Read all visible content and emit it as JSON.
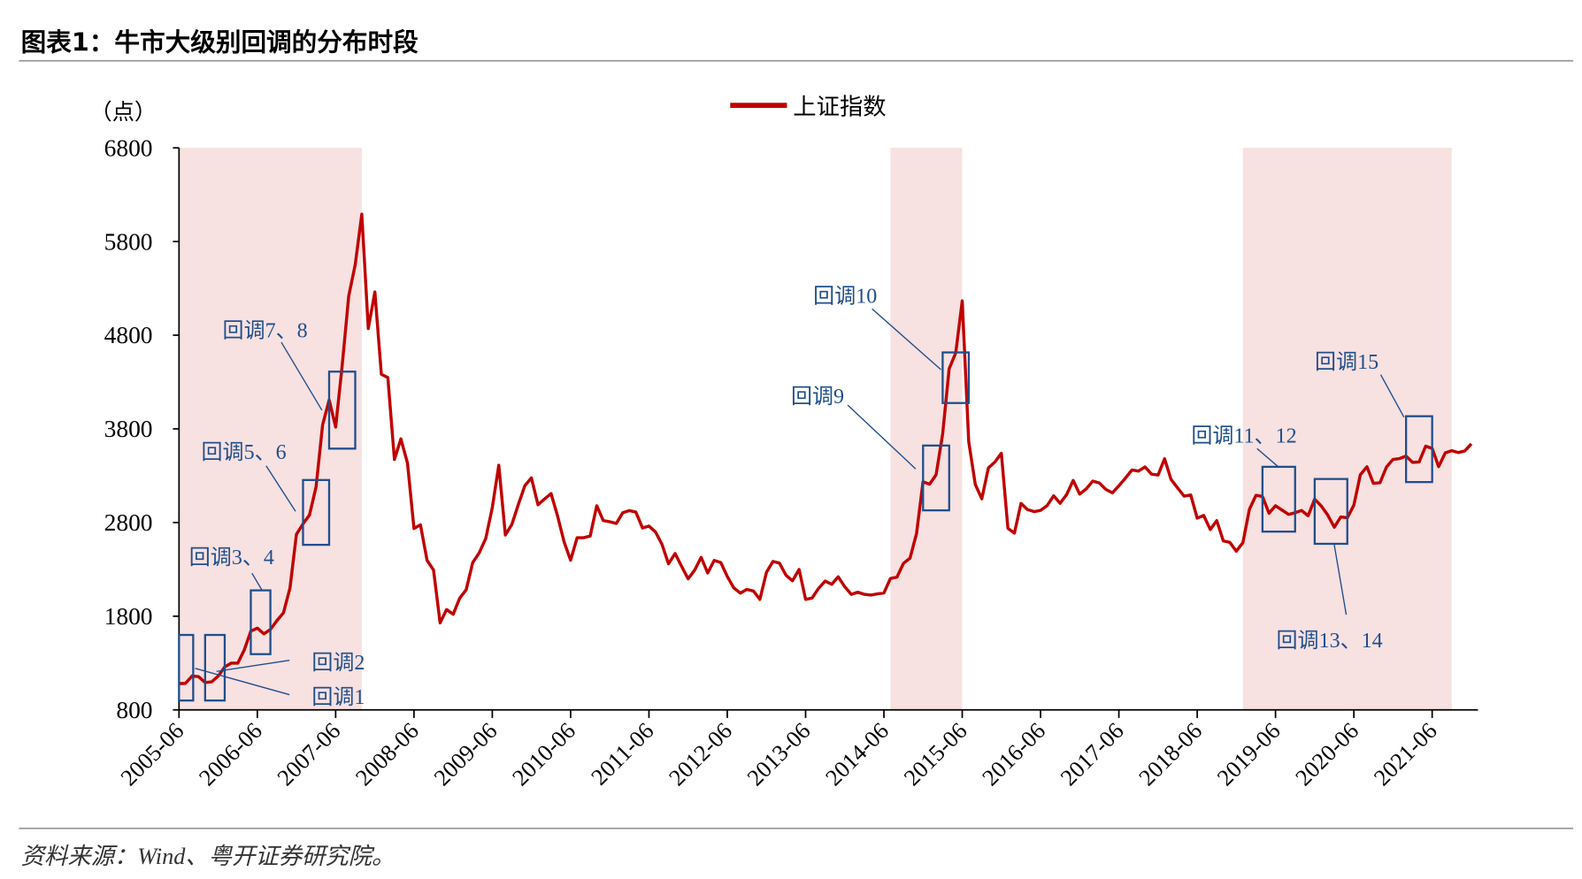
{
  "header": {
    "title": "图表1：牛市大级别回调的分布时段"
  },
  "footer": {
    "source": "资料来源：Wind、粤开证券研究院。"
  },
  "chart_data": {
    "type": "line",
    "title": "牛市大级别回调的分布时段",
    "ylabel": "（点）",
    "ylim": [
      800,
      6800
    ],
    "yticks": [
      "800",
      "1800",
      "2800",
      "3800",
      "4800",
      "5800",
      "6800"
    ],
    "ytick_values": [
      800,
      1800,
      2800,
      3800,
      4800,
      5800,
      6800
    ],
    "xticks": [
      "2005-06",
      "2006-06",
      "2007-06",
      "2008-06",
      "2009-06",
      "2010-06",
      "2011-06",
      "2012-06",
      "2013-06",
      "2014-06",
      "2015-06",
      "2016-06",
      "2017-06",
      "2018-06",
      "2019-06",
      "2020-06",
      "2021-06"
    ],
    "x_start": "2005-06",
    "legend": {
      "position": "top-center",
      "entries": [
        "上证指数"
      ]
    },
    "colors": {
      "line": "#c00000",
      "shade": "#f7e1e1",
      "box": "#1f4e8c",
      "label": "#1f4e8c"
    },
    "series": [
      {
        "name": "上证指数",
        "frequency": "monthly",
        "start": "2005-06",
        "values": [
          1080,
          1083,
          1162,
          1155,
          1092,
          1099,
          1161,
          1258,
          1299,
          1298,
          1440,
          1641,
          1672,
          1612,
          1658,
          1752,
          1837,
          2099,
          2675,
          2786,
          2881,
          3183,
          3841,
          4109,
          3820,
          4471,
          5218,
          5552,
          6092,
          4871,
          5262,
          4383,
          4348,
          3473,
          3693,
          3433,
          2736,
          2775,
          2397,
          2293,
          1729,
          1871,
          1821,
          1991,
          2082,
          2373,
          2477,
          2632,
          2959,
          3412,
          2667,
          2779,
          2996,
          3195,
          3277,
          2989,
          3051,
          3109,
          2870,
          2592,
          2398,
          2638,
          2638,
          2656,
          2979,
          2820,
          2808,
          2790,
          2905,
          2928,
          2911,
          2743,
          2762,
          2701,
          2567,
          2359,
          2469,
          2333,
          2199,
          2292,
          2428,
          2262,
          2396,
          2373,
          2225,
          2103,
          2047,
          2086,
          2069,
          1980,
          2269,
          2385,
          2366,
          2237,
          2178,
          2300,
          1979,
          1994,
          2098,
          2175,
          2141,
          2220,
          2116,
          2033,
          2056,
          2033,
          2026,
          2039,
          2048,
          2202,
          2217,
          2364,
          2420,
          2683,
          3235,
          3210,
          3310,
          3748,
          4442,
          4612,
          5166,
          3664,
          3206,
          3053,
          3383,
          3445,
          3539,
          2738,
          2688,
          3004,
          2938,
          2917,
          2930,
          2979,
          3085,
          3005,
          3100,
          3250,
          3104,
          3159,
          3242,
          3223,
          3155,
          3117,
          3192,
          3273,
          3361,
          3349,
          3393,
          3317,
          3307,
          3481,
          3259,
          3169,
          3082,
          3095,
          2847,
          2876,
          2725,
          2821,
          2603,
          2588,
          2494,
          2585,
          2941,
          3091,
          3078,
          2899,
          2979,
          2933,
          2886,
          2905,
          2929,
          2872,
          3050,
          2977,
          2880,
          2750,
          2860,
          2852,
          2985,
          3310,
          3396,
          3218,
          3225,
          3392,
          3473,
          3483,
          3509,
          3442,
          3447,
          3615,
          3591,
          3397,
          3544,
          3568,
          3547,
          3564,
          3640
        ]
      }
    ],
    "shaded_periods": [
      {
        "from": "2005-06",
        "to": "2007-10"
      },
      {
        "from": "2014-07",
        "to": "2015-06"
      },
      {
        "from": "2019-01",
        "to": "2021-09"
      }
    ],
    "annotations": [
      {
        "label": "回调1",
        "from": "2005-06",
        "to": "2005-08",
        "low": 900,
        "high": 1600
      },
      {
        "label": "回调2",
        "from": "2005-10",
        "to": "2006-01",
        "low": 900,
        "high": 1600
      },
      {
        "label": "回调3、4",
        "from": "2006-05",
        "to": "2006-08",
        "low": 1395,
        "high": 2076
      },
      {
        "label": "回调5、6",
        "from": "2007-01",
        "to": "2007-05",
        "low": 2562,
        "high": 3254
      },
      {
        "label": "回调7、8",
        "from": "2007-05",
        "to": "2007-09",
        "low": 3589,
        "high": 4411
      },
      {
        "label": "回调9",
        "from": "2014-12",
        "to": "2015-04",
        "low": 2930,
        "high": 3622
      },
      {
        "label": "回调10",
        "from": "2015-03",
        "to": "2015-07",
        "low": 4076,
        "high": 4616
      },
      {
        "label": "回调11、12",
        "from": "2019-04",
        "to": "2019-09",
        "low": 2703,
        "high": 3395
      },
      {
        "label": "回调13、14",
        "from": "2019-12",
        "to": "2020-05",
        "low": 2573,
        "high": 3265
      },
      {
        "label": "回调15",
        "from": "2021-02",
        "to": "2021-06",
        "low": 3232,
        "high": 3935
      }
    ]
  }
}
